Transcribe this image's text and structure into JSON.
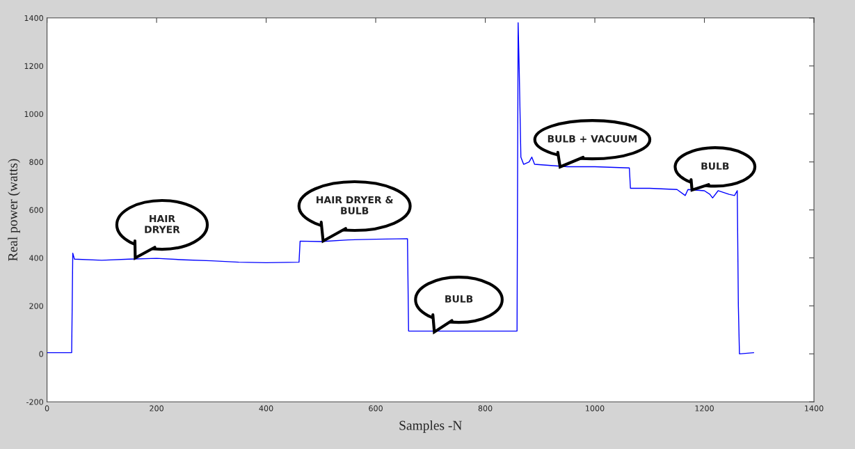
{
  "chart_data": {
    "type": "line",
    "xlabel": "Samples -N",
    "ylabel": "Real power (watts)",
    "xlim": [
      0,
      1400
    ],
    "ylim": [
      -200,
      1400
    ],
    "xticks": [
      0,
      200,
      400,
      600,
      800,
      1000,
      1200,
      1400
    ],
    "yticks": [
      -200,
      0,
      200,
      400,
      600,
      800,
      1000,
      1200,
      1400
    ],
    "grid": false,
    "marker": "none",
    "line_style": "solid",
    "series": [
      {
        "color": "#0000ff",
        "x": [
          0,
          45,
          47,
          50,
          100,
          150,
          200,
          250,
          300,
          350,
          400,
          460,
          462,
          500,
          550,
          600,
          658,
          660,
          700,
          800,
          858,
          860,
          862,
          865,
          870,
          880,
          885,
          890,
          920,
          950,
          1000,
          1063,
          1065,
          1100,
          1150,
          1165,
          1170,
          1200,
          1210,
          1215,
          1225,
          1245,
          1255,
          1260,
          1262,
          1264,
          1290
        ],
        "values": [
          5,
          5,
          420,
          395,
          390,
          395,
          398,
          392,
          388,
          382,
          380,
          382,
          470,
          468,
          475,
          478,
          480,
          95,
          95,
          95,
          95,
          1380,
          1180,
          820,
          790,
          800,
          820,
          790,
          785,
          780,
          780,
          775,
          690,
          690,
          685,
          660,
          685,
          680,
          665,
          650,
          680,
          665,
          660,
          680,
          200,
          0,
          5
        ]
      }
    ],
    "annotations": [
      "HAIR\nDRYER",
      "HAIR DRYER &\nBULB",
      "BULB",
      "BULB + VACUUM",
      "BULB"
    ]
  }
}
